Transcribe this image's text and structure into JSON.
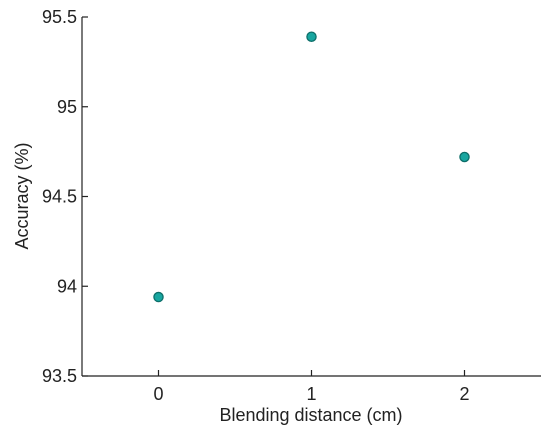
{
  "chart_data": {
    "type": "scatter",
    "title": "",
    "xlabel": "Blending distance (cm)",
    "ylabel": "Accuracy (%)",
    "xlim": [
      -0.5,
      2.5
    ],
    "ylim": [
      93.5,
      95.5
    ],
    "x_ticks": [
      0,
      1,
      2
    ],
    "x_tick_labels": [
      "0",
      "1",
      "2"
    ],
    "y_ticks": [
      93.5,
      94,
      94.5,
      95,
      95.5
    ],
    "y_tick_labels": [
      "93.5",
      "94",
      "94.5",
      "95",
      "95.5"
    ],
    "grid": false,
    "box": false,
    "marker_color": "#18a6a0",
    "marker_edge_color": "#0d6e69",
    "series": [
      {
        "x": [
          0,
          1,
          2
        ],
        "y": [
          93.94,
          95.39,
          94.72
        ]
      }
    ]
  }
}
